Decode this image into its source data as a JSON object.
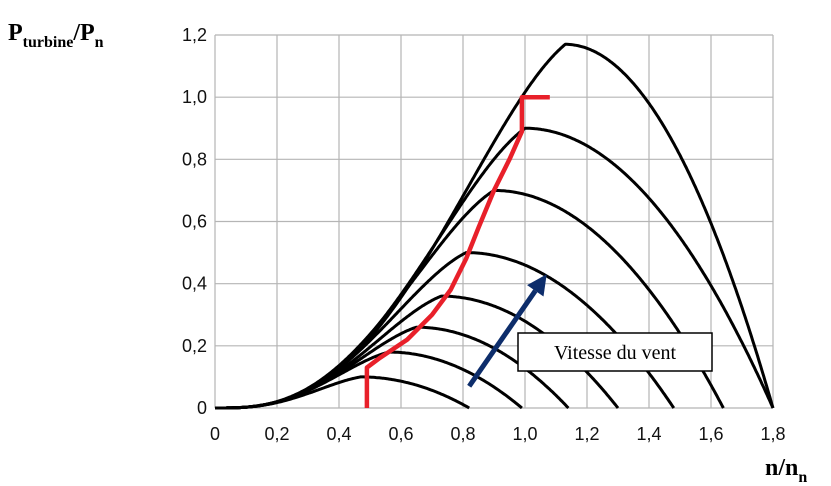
{
  "chart_data": {
    "type": "line",
    "ylabel": {
      "main": "P",
      "sub": "turbine",
      "sep": "/P",
      "sub2": "n"
    },
    "xlabel": {
      "main": "n/n",
      "sub": "n"
    },
    "xlim": [
      0,
      1.8
    ],
    "ylim": [
      0,
      1.2
    ],
    "x_ticks": [
      "0",
      "0,2",
      "0,4",
      "0,6",
      "0,8",
      "1,0",
      "1,2",
      "1,4",
      "1,6",
      "1,8"
    ],
    "y_ticks": [
      "0",
      "0,2",
      "0,4",
      "0,6",
      "0,8",
      "1,0",
      "1,2"
    ],
    "grid": true,
    "curve_color": "#000000",
    "series": [
      {
        "peak_x": 0.47,
        "peak_y": 0.1,
        "end_x": 0.82
      },
      {
        "peak_x": 0.56,
        "peak_y": 0.18,
        "end_x": 0.99
      },
      {
        "peak_x": 0.65,
        "peak_y": 0.26,
        "end_x": 1.14
      },
      {
        "peak_x": 0.73,
        "peak_y": 0.36,
        "end_x": 1.3
      },
      {
        "peak_x": 0.81,
        "peak_y": 0.5,
        "end_x": 1.48
      },
      {
        "peak_x": 0.9,
        "peak_y": 0.7,
        "end_x": 1.64
      },
      {
        "peak_x": 1.0,
        "peak_y": 0.9,
        "end_x": 1.8
      },
      {
        "peak_x": 1.13,
        "peak_y": 1.17,
        "end_x": 1.8
      }
    ],
    "operating_curve": {
      "color": "#e8202a",
      "points": [
        [
          0.49,
          0.0
        ],
        [
          0.49,
          0.13
        ],
        [
          0.53,
          0.16
        ],
        [
          0.62,
          0.22
        ],
        [
          0.7,
          0.3
        ],
        [
          0.76,
          0.38
        ],
        [
          0.81,
          0.48
        ],
        [
          0.85,
          0.58
        ],
        [
          0.9,
          0.7
        ],
        [
          0.95,
          0.8
        ],
        [
          0.99,
          0.89
        ],
        [
          0.99,
          1.0
        ],
        [
          1.08,
          1.0
        ]
      ]
    },
    "annotation": {
      "text": "Vitesse du vent",
      "arrow_color": "#0d2d6b",
      "arrow_from": [
        0.82,
        0.07
      ],
      "arrow_to": [
        1.07,
        0.43
      ]
    }
  }
}
